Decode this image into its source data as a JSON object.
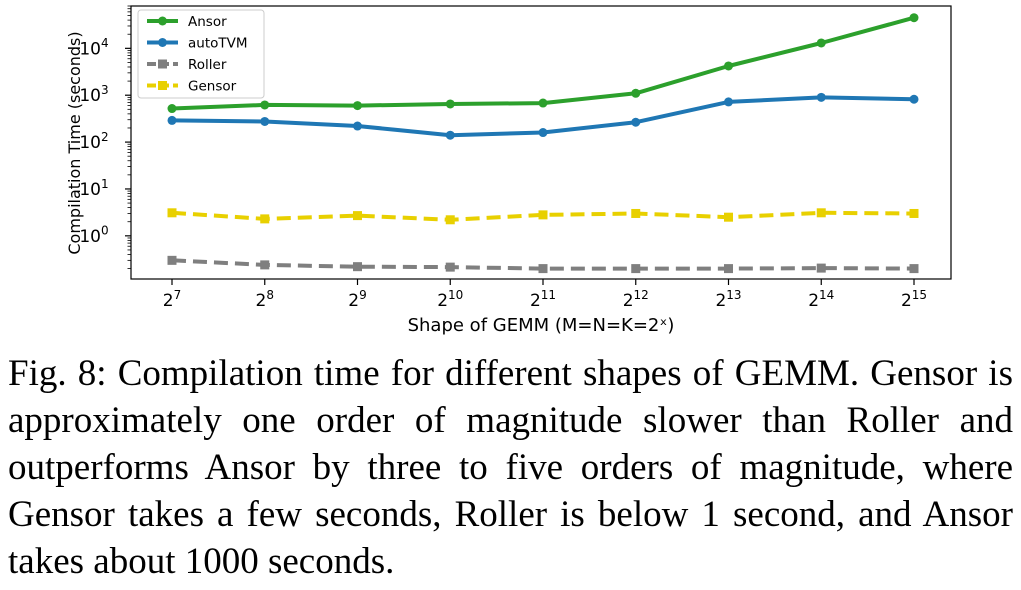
{
  "chart_data": {
    "type": "line",
    "xlabel": "Shape of GEMM (M=N=K=2ˣ)",
    "ylabel": "Compilation Time (seconds)",
    "yscale": "log",
    "ylim": [
      0.12,
      80000
    ],
    "x_exponents": [
      7,
      8,
      9,
      10,
      11,
      12,
      13,
      14,
      15
    ],
    "x_tick_labels": [
      {
        "base": "2",
        "exp": "7"
      },
      {
        "base": "2",
        "exp": "8"
      },
      {
        "base": "2",
        "exp": "9"
      },
      {
        "base": "2",
        "exp": "10"
      },
      {
        "base": "2",
        "exp": "11"
      },
      {
        "base": "2",
        "exp": "12"
      },
      {
        "base": "2",
        "exp": "13"
      },
      {
        "base": "2",
        "exp": "14"
      },
      {
        "base": "2",
        "exp": "15"
      }
    ],
    "y_ticks": [
      {
        "value": 1,
        "base": "10",
        "exp": "0"
      },
      {
        "value": 10,
        "base": "10",
        "exp": "1"
      },
      {
        "value": 100,
        "base": "10",
        "exp": "2"
      },
      {
        "value": 1000,
        "base": "10",
        "exp": "3"
      },
      {
        "value": 10000,
        "base": "10",
        "exp": "4"
      }
    ],
    "grid": false,
    "legend_position": "top-left",
    "series": [
      {
        "name": "Ansor",
        "color": "#2ca02c",
        "style": "solid",
        "marker": "circle",
        "values": [
          520,
          620,
          600,
          650,
          680,
          1100,
          4200,
          13000,
          45000
        ]
      },
      {
        "name": "autoTVM",
        "color": "#1f77b4",
        "style": "solid",
        "marker": "circle",
        "values": [
          290,
          275,
          220,
          140,
          160,
          265,
          720,
          900,
          820
        ]
      },
      {
        "name": "Roller",
        "color": "#7f7f7f",
        "style": "dashed",
        "marker": "square",
        "values": [
          0.3,
          0.24,
          0.22,
          0.215,
          0.2,
          0.2,
          0.2,
          0.205,
          0.2
        ]
      },
      {
        "name": "Gensor",
        "color": "#e8d000",
        "style": "dashed",
        "marker": "square",
        "values": [
          3.1,
          2.3,
          2.7,
          2.2,
          2.8,
          3.0,
          2.5,
          3.1,
          3.0
        ]
      }
    ]
  },
  "caption": "Fig. 8: Compilation time for different shapes of GEMM. Gensor is approximately one order of magnitude slower than Roller and outperforms Ansor by three to five orders of magnitude, where Gensor takes a few seconds, Roller is below 1 second, and Ansor takes about 1000 seconds."
}
